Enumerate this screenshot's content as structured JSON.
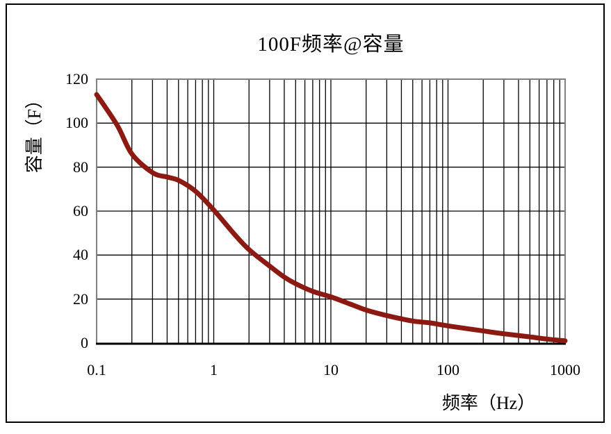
{
  "chart": {
    "colors": {
      "line": "#8B1A12",
      "grid": "#000000",
      "axis": "#000000",
      "plot_border": "#808080",
      "outer_border": "#000000",
      "background": "#FFFFFF"
    }
  },
  "chart_data": {
    "type": "line",
    "title": "100F频率@容量",
    "xlabel": "频率（Hz）",
    "ylabel": "容量（F）",
    "x_scale": "log",
    "xlim": [
      0.1,
      1000
    ],
    "ylim": [
      0,
      120
    ],
    "x_ticks": [
      "0.1",
      "1",
      "10",
      "100",
      "1000"
    ],
    "y_ticks": [
      0,
      20,
      40,
      60,
      80,
      100,
      120
    ],
    "grid": "major-y + log-minor-x",
    "legend": false,
    "series": [
      {
        "color": "#8B1A12",
        "x": [
          0.1,
          0.15,
          0.2,
          0.3,
          0.4,
          0.5,
          0.7,
          1,
          1.5,
          2,
          3,
          4,
          5,
          7,
          10,
          15,
          20,
          30,
          50,
          70,
          100,
          200,
          300,
          500,
          700,
          1000
        ],
        "y": [
          113,
          99,
          86,
          77.5,
          75.5,
          74,
          69,
          60.5,
          49.5,
          42.5,
          35,
          30,
          27,
          23.5,
          21,
          17.5,
          15,
          12.5,
          10,
          9.2,
          7.8,
          5.5,
          4.2,
          2.8,
          1.8,
          1
        ]
      }
    ]
  }
}
